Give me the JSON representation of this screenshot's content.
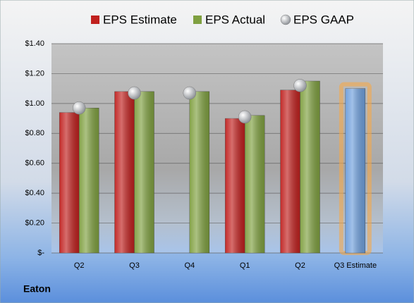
{
  "chart_data": {
    "type": "bar",
    "footer": "Eaton",
    "categories": [
      "Q2",
      "Q3",
      "Q4",
      "Q1",
      "Q2",
      "Q3 Estimate"
    ],
    "series": [
      {
        "name": "EPS Estimate",
        "color": "#c0201e",
        "values": [
          0.94,
          1.08,
          null,
          0.9,
          1.09,
          null
        ]
      },
      {
        "name": "EPS Actual",
        "color": "#7fa040",
        "values": [
          0.97,
          1.08,
          1.08,
          0.92,
          1.15,
          null
        ]
      },
      {
        "name": "EPS GAAP",
        "color": "#b0b4ba",
        "marker": "circle",
        "values": [
          0.97,
          1.07,
          1.07,
          0.91,
          1.12,
          null
        ]
      },
      {
        "color": "#6e9fdc",
        "highlight": true,
        "values": [
          null,
          null,
          null,
          null,
          null,
          1.1
        ]
      }
    ],
    "ylim": [
      0,
      1.4
    ],
    "yticks": [
      {
        "value": 0,
        "label": "$-"
      },
      {
        "value": 0.2,
        "label": "$0.20"
      },
      {
        "value": 0.4,
        "label": "$0.40"
      },
      {
        "value": 0.6,
        "label": "$0.60"
      },
      {
        "value": 0.8,
        "label": "$0.80"
      },
      {
        "value": 1.0,
        "label": "$1.00"
      },
      {
        "value": 1.2,
        "label": "$1.20"
      },
      {
        "value": 1.4,
        "label": "$1.40"
      }
    ],
    "grid": true,
    "legend": "top"
  }
}
